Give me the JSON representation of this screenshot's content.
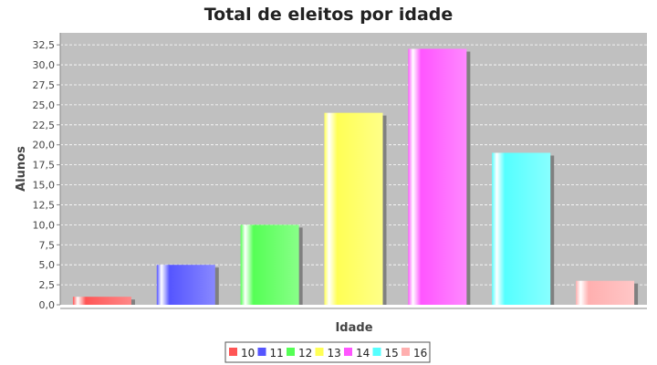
{
  "chart_data": {
    "type": "bar",
    "title": "Total de eleitos por idade",
    "xlabel": "Idade",
    "ylabel": "Alunos",
    "categories": [
      "10",
      "11",
      "12",
      "13",
      "14",
      "15",
      "16"
    ],
    "values": [
      1,
      5,
      10,
      24,
      32,
      19,
      3
    ],
    "ylim": [
      0,
      34
    ],
    "yticks": [
      "0,0",
      "2,5",
      "5,0",
      "7,5",
      "10,0",
      "12,5",
      "15,0",
      "17,5",
      "20,0",
      "22,5",
      "25,0",
      "27,5",
      "30,0",
      "32,5"
    ],
    "colors": [
      "#ff5555",
      "#5555ff",
      "#55ff55",
      "#ffff55",
      "#ff55ff",
      "#55ffff",
      "#ffafaf"
    ],
    "grid": true,
    "legend_position": "bottom",
    "legend": [
      "10",
      "11",
      "12",
      "13",
      "14",
      "15",
      "16"
    ],
    "plot_background": "#c0c0c0"
  }
}
